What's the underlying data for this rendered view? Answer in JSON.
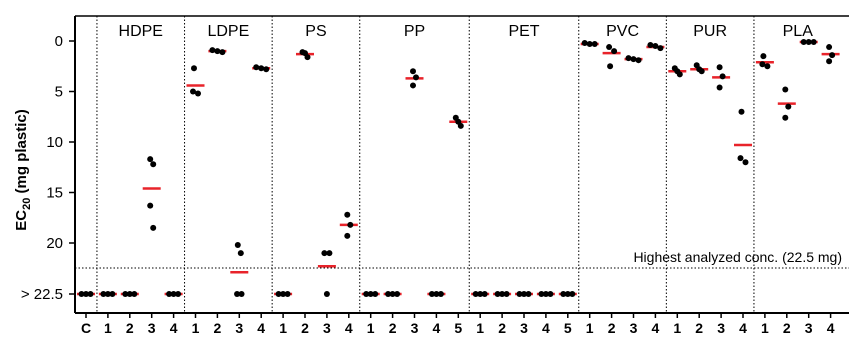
{
  "chart_data": {
    "type": "scatter",
    "ylabel": "EC20 (mg plastic)",
    "ylabel_parts": {
      "main": "EC",
      "sub": "20",
      "rest": " (mg plastic)"
    },
    "y_axis": {
      "inverted": true,
      "ylim": [
        0,
        22.5
      ],
      "ticks": [
        0,
        5,
        10,
        15,
        20
      ]
    },
    "overflow_label": "> 22.5",
    "threshold": {
      "value": 22.5,
      "label": "Highest analyzed conc. (22.5 mg)"
    },
    "colors": {
      "point": "#000000",
      "median": "#e8232a"
    },
    "groups": [
      {
        "name": "",
        "categories": [
          {
            "tick": "C",
            "points": [
              ">22.5",
              ">22.5",
              ">22.5"
            ],
            "median": ">22.5"
          }
        ]
      },
      {
        "name": "HDPE",
        "categories": [
          {
            "tick": "1",
            "points": [
              ">22.5",
              ">22.5",
              ">22.5"
            ],
            "median": ">22.5"
          },
          {
            "tick": "2",
            "points": [
              ">22.5",
              ">22.5",
              ">22.5"
            ],
            "median": ">22.5"
          },
          {
            "tick": "3",
            "points": [
              11.7,
              12.2,
              16.3,
              18.5
            ],
            "median": 14.6
          },
          {
            "tick": "4",
            "points": [
              ">22.5",
              ">22.5",
              ">22.5"
            ],
            "median": ">22.5"
          }
        ]
      },
      {
        "name": "LDPE",
        "categories": [
          {
            "tick": "1",
            "points": [
              2.7,
              5.0,
              5.2
            ],
            "median": 4.4
          },
          {
            "tick": "2",
            "points": [
              0.9,
              1.0,
              1.1
            ],
            "median": 1.0
          },
          {
            "tick": "3",
            "points": [
              20.2,
              21.0,
              ">22.5",
              ">22.5"
            ],
            "median": 22.9
          },
          {
            "tick": "4",
            "points": [
              2.6,
              2.7,
              2.8
            ],
            "median": 2.7
          }
        ]
      },
      {
        "name": "PS",
        "categories": [
          {
            "tick": "1",
            "points": [
              ">22.5",
              ">22.5",
              ">22.5"
            ],
            "median": ">22.5"
          },
          {
            "tick": "2",
            "points": [
              1.1,
              1.2,
              1.6
            ],
            "median": 1.3
          },
          {
            "tick": "3",
            "points": [
              21.0,
              21.0,
              ">22.5"
            ],
            "median": 22.3
          },
          {
            "tick": "4",
            "points": [
              17.2,
              18.2,
              19.3
            ],
            "median": 18.2
          }
        ]
      },
      {
        "name": "PP",
        "categories": [
          {
            "tick": "1",
            "points": [
              ">22.5",
              ">22.5",
              ">22.5"
            ],
            "median": ">22.5"
          },
          {
            "tick": "2",
            "points": [
              ">22.5",
              ">22.5",
              ">22.5"
            ],
            "median": ">22.5"
          },
          {
            "tick": "3",
            "points": [
              3.0,
              3.6,
              4.4
            ],
            "median": 3.7
          },
          {
            "tick": "4",
            "points": [
              ">22.5",
              ">22.5",
              ">22.5"
            ],
            "median": ">22.5"
          },
          {
            "tick": "5",
            "points": [
              7.6,
              8.0,
              8.4
            ],
            "median": 8.0
          }
        ]
      },
      {
        "name": "PET",
        "categories": [
          {
            "tick": "1",
            "points": [
              ">22.5",
              ">22.5",
              ">22.5"
            ],
            "median": ">22.5"
          },
          {
            "tick": "2",
            "points": [
              ">22.5",
              ">22.5",
              ">22.5"
            ],
            "median": ">22.5"
          },
          {
            "tick": "3",
            "points": [
              ">22.5",
              ">22.5",
              ">22.5"
            ],
            "median": ">22.5"
          },
          {
            "tick": "4",
            "points": [
              ">22.5",
              ">22.5",
              ">22.5"
            ],
            "median": ">22.5"
          },
          {
            "tick": "5",
            "points": [
              ">22.5",
              ">22.5",
              ">22.5"
            ],
            "median": ">22.5"
          }
        ]
      },
      {
        "name": "PVC",
        "categories": [
          {
            "tick": "1",
            "points": [
              0.2,
              0.3,
              0.3
            ],
            "median": 0.3
          },
          {
            "tick": "2",
            "points": [
              0.6,
              1.0,
              2.5
            ],
            "median": 1.2
          },
          {
            "tick": "3",
            "points": [
              1.7,
              1.8,
              1.9
            ],
            "median": 1.8
          },
          {
            "tick": "4",
            "points": [
              0.4,
              0.5,
              0.7
            ],
            "median": 0.6
          }
        ]
      },
      {
        "name": "PUR",
        "categories": [
          {
            "tick": "1",
            "points": [
              2.7,
              3.0,
              3.3
            ],
            "median": 3.0
          },
          {
            "tick": "2",
            "points": [
              2.4,
              2.8,
              3.0
            ],
            "median": 2.8
          },
          {
            "tick": "3",
            "points": [
              2.6,
              3.5,
              4.6
            ],
            "median": 3.6
          },
          {
            "tick": "4",
            "points": [
              7.0,
              11.6,
              12.0
            ],
            "median": 10.3
          }
        ]
      },
      {
        "name": "PLA",
        "categories": [
          {
            "tick": "1",
            "points": [
              1.5,
              2.3,
              2.5
            ],
            "median": 2.1
          },
          {
            "tick": "2",
            "points": [
              4.8,
              6.5,
              7.6
            ],
            "median": 6.2
          },
          {
            "tick": "3",
            "points": [
              0.1,
              0.1,
              0.1
            ],
            "median": 0.1
          },
          {
            "tick": "4",
            "points": [
              0.6,
              1.4,
              2.0
            ],
            "median": 1.3
          }
        ]
      }
    ]
  }
}
